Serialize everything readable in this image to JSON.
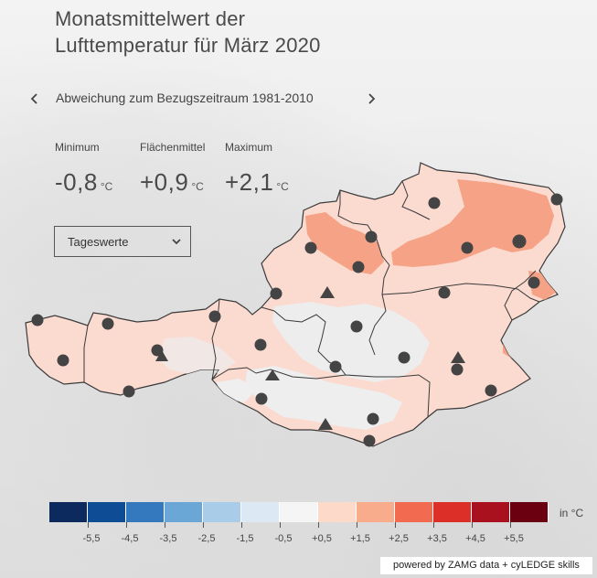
{
  "title": {
    "line1": "Monatsmittelwert der",
    "line2": "Lufttemperatur für März 2020"
  },
  "period": {
    "prev_icon": "chevron-left-icon",
    "label": "Abweichung zum Bezugszeitraum 1981-2010",
    "next_icon": "chevron-right-icon"
  },
  "stats": {
    "minimum": {
      "label": "Minimum",
      "value": "-0,8",
      "unit": "°C"
    },
    "mean": {
      "label": "Flächenmittel",
      "value": "+0,9",
      "unit": "°C"
    },
    "maximum": {
      "label": "Maximum",
      "value": "+2,1",
      "unit": "°C"
    }
  },
  "dropdown": {
    "selected": "Tageswerte",
    "icon": "chevron-down-icon"
  },
  "legend": {
    "unit": "in °C",
    "ticks": [
      "-5,5",
      "-4,5",
      "-3,5",
      "-2,5",
      "-1,5",
      "-0,5",
      "+0,5",
      "+1,5",
      "+2,5",
      "+3,5",
      "+4,5",
      "+5,5"
    ],
    "colors": [
      "#0d2a5e",
      "#0e4c96",
      "#3478bd",
      "#6aa6d6",
      "#a9cde8",
      "#dce9f5",
      "#f5f5f5",
      "#fcd9c8",
      "#f8ac8c",
      "#f26a4f",
      "#dc2f27",
      "#a8111d",
      "#6b0010"
    ]
  },
  "map": {
    "country": "Österreich",
    "fill_base": "#fbdad0",
    "fill_warm": "#f5a286",
    "fill_cool": "#ededed",
    "border": "#3a3a3a",
    "station_symbol_circle": "station-circle",
    "station_symbol_triangle": "station-triangle"
  },
  "credit": "powered by ZAMG data + cyLEDGE skills"
}
